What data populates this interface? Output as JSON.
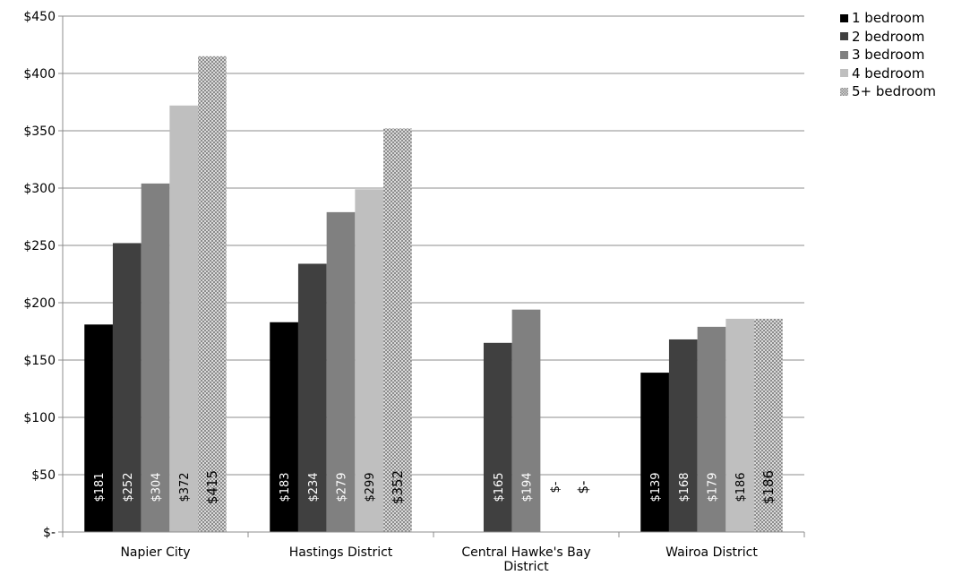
{
  "chart_data": {
    "type": "bar",
    "categories": [
      "Napier City",
      "Hastings District",
      "Central Hawke's Bay District",
      "Wairoa District"
    ],
    "series": [
      {
        "name": "1 bedroom",
        "values": [
          181,
          183,
          null,
          139
        ],
        "labels": [
          "$181",
          "$183",
          "",
          "$139"
        ],
        "color": "#000000"
      },
      {
        "name": "2 bedroom",
        "values": [
          252,
          234,
          165,
          168
        ],
        "labels": [
          "$252",
          "$234",
          "$165",
          "$168"
        ],
        "color": "#404040"
      },
      {
        "name": "3 bedroom",
        "values": [
          304,
          279,
          194,
          179
        ],
        "labels": [
          "$304",
          "$279",
          "$194",
          "$179"
        ],
        "color": "#808080"
      },
      {
        "name": "4 bedroom",
        "values": [
          372,
          299,
          0,
          186
        ],
        "labels": [
          "$372",
          "$299",
          "$-",
          "$186"
        ],
        "color": "#bfbfbf"
      },
      {
        "name": "5+ bedroom",
        "values": [
          415,
          352,
          0,
          186
        ],
        "labels": [
          "$415",
          "$352",
          "$-",
          "$186"
        ],
        "color": "#a6a6a6",
        "pattern": "checker"
      }
    ],
    "y_ticks": [
      "$-",
      "$50",
      "$100",
      "$150",
      "$200",
      "$250",
      "$300",
      "$350",
      "$400",
      "$450"
    ],
    "ylim": [
      0,
      450
    ],
    "ytick_step": 50,
    "grid": true,
    "legend_position": "top-right"
  }
}
